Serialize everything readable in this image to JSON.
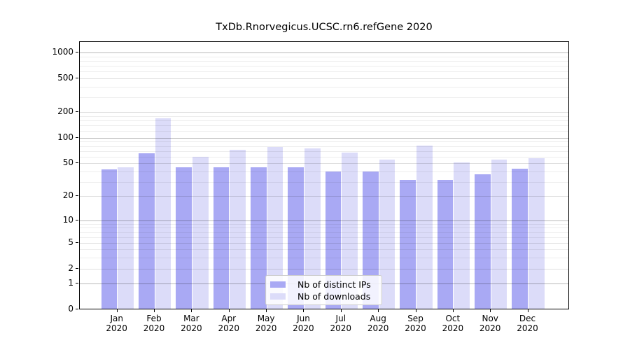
{
  "chart_data": {
    "type": "bar",
    "title": "TxDb.Rnorvegicus.UCSC.rn6.refGene 2020",
    "categories": [
      "Jan",
      "Feb",
      "Mar",
      "Apr",
      "May",
      "Jun",
      "Jul",
      "Aug",
      "Sep",
      "Oct",
      "Nov",
      "Dec"
    ],
    "category_year": "2020",
    "series": [
      {
        "name": "Nb of distinct IPs",
        "color": "#a9a9f4",
        "values": [
          41,
          64,
          44,
          44,
          44,
          44,
          39,
          39,
          31,
          31,
          36,
          42
        ]
      },
      {
        "name": "Nb of downloads",
        "color": "#dcdcf9",
        "values": [
          44,
          165,
          58,
          71,
          76,
          74,
          65,
          54,
          80,
          50,
          54,
          56
        ]
      }
    ],
    "xlabel": "",
    "ylabel": "",
    "y_scale": "log1p",
    "ylim": [
      0,
      1326
    ],
    "y_ticks": [
      0,
      1,
      2,
      5,
      10,
      20,
      50,
      100,
      200,
      500,
      1000
    ],
    "y_gridlines_major": [
      1,
      10,
      100,
      1000
    ],
    "y_gridlines_labeled": [
      2,
      5,
      20,
      50,
      200,
      500
    ],
    "y_gridlines_minor": [
      3,
      4,
      6,
      7,
      8,
      9,
      30,
      40,
      60,
      70,
      80,
      90,
      120,
      140,
      160,
      180,
      300,
      400,
      600,
      700,
      800,
      900
    ],
    "grid": "horizontal",
    "legend": {
      "position": "bottom-center"
    }
  },
  "colors": {
    "background": "#ffffff",
    "axis": "#000000",
    "text": "#000000",
    "grid_major": "rgba(0,0,0,0.28)",
    "grid_labeled": "rgba(0,0,0,0.13)",
    "grid_minor": "rgba(0,0,0,0.07)",
    "bar_distinct_ips": "#a9a9f4",
    "bar_downloads": "#dcdcf9",
    "legend_border": "#cccccc"
  }
}
